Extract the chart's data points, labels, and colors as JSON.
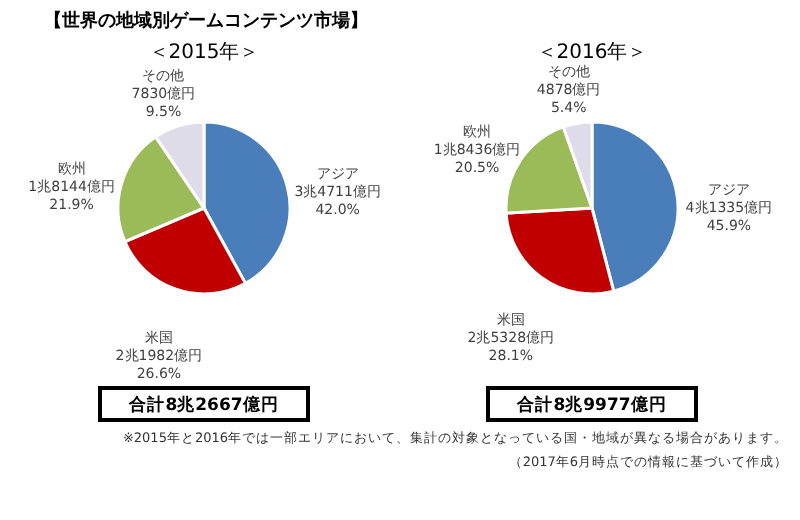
{
  "chart_data": [
    {
      "type": "pie",
      "title": "【世界の地域別ゲームコンテンツ市場】",
      "subtitle": "＜2015年＞",
      "categories": [
        "アジア",
        "米国",
        "欧州",
        "その他"
      ],
      "values": [
        42.0,
        26.6,
        21.9,
        9.5
      ],
      "colors": [
        "#4a7ebb",
        "#c00000",
        "#9bbb59",
        "#dedce8"
      ],
      "value_labels": [
        "3兆4711億円\n42.0%",
        "2兆1982億円\n26.6%",
        "1兆8144億円\n21.9%",
        "7830億円\n9.5%"
      ],
      "legend": false,
      "annotations": [
        "合計8兆2667億円"
      ]
    },
    {
      "type": "pie",
      "subtitle": "＜2016年＞",
      "categories": [
        "アジア",
        "米国",
        "欧州",
        "その他"
      ],
      "values": [
        45.9,
        28.1,
        20.5,
        5.4
      ],
      "colors": [
        "#4a7ebb",
        "#c00000",
        "#9bbb59",
        "#dedce8"
      ],
      "value_labels": [
        "4兆1335億円\n45.9%",
        "2兆5328億円\n28.1%",
        "1兆8436億円\n20.5%",
        "4878億円\n5.4%"
      ],
      "legend": false,
      "annotations": [
        "合計8兆9977億円",
        "※2015年と2016年では一部エリアにおいて、集計の対象となっている国・地域が異なる場合があります。",
        "（2017年6月時点での情報に基づいて作成）"
      ]
    }
  ]
}
